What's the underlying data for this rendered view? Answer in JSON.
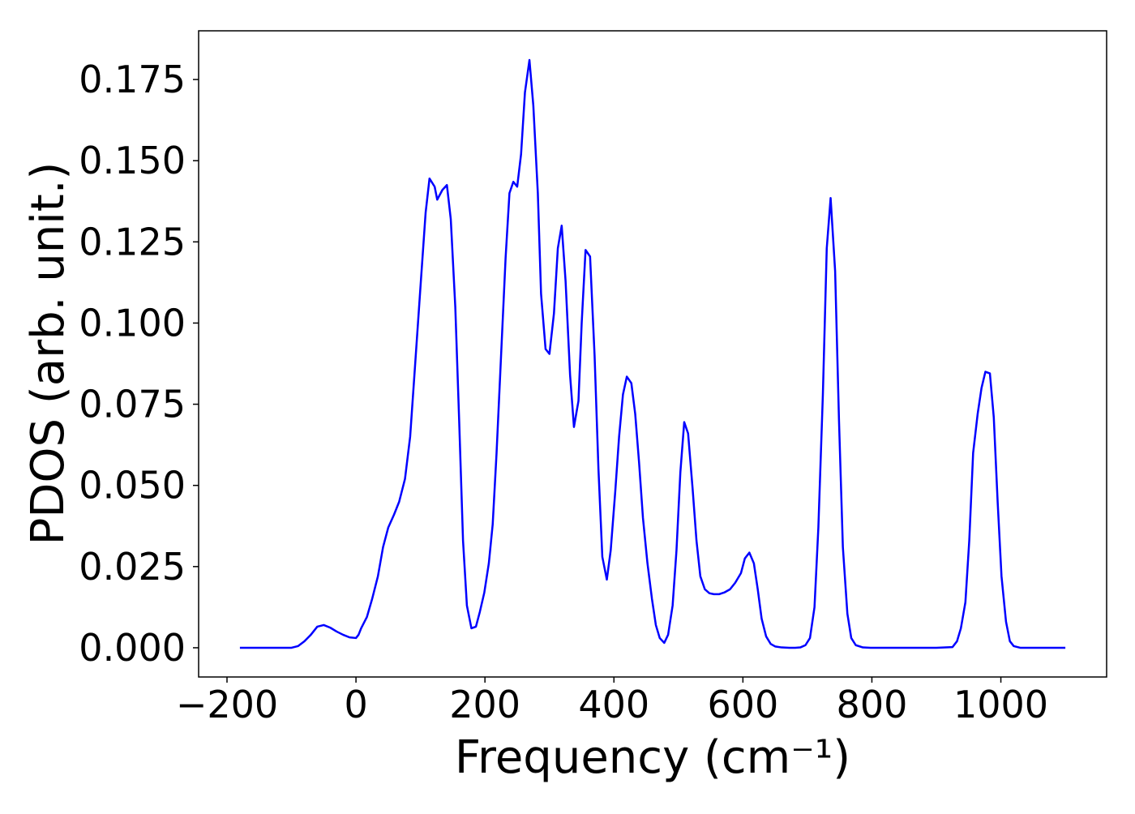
{
  "chart_data": {
    "type": "line",
    "xlabel": "Frequency (cm⁻¹)",
    "ylabel": "PDOS (arb. unit.)",
    "xlim": [
      -244,
      1164
    ],
    "ylim": [
      -0.009,
      0.19
    ],
    "xticks": [
      {
        "value": -200,
        "label": "−200"
      },
      0,
      200,
      400,
      600,
      800,
      1000
    ],
    "yticks": [
      {
        "value": 0,
        "label": "0.000"
      },
      {
        "value": 0.025,
        "label": "0.025"
      },
      {
        "value": 0.05,
        "label": "0.050"
      },
      {
        "value": 0.075,
        "label": "0.075"
      },
      {
        "value": 0.1,
        "label": "0.100"
      },
      {
        "value": 0.125,
        "label": "0.125"
      },
      {
        "value": 0.15,
        "label": "0.150"
      },
      {
        "value": 0.175,
        "label": "0.175"
      }
    ],
    "series": [
      {
        "color": "#0000ff",
        "x": [
          -180,
          -100,
          -90,
          -80,
          -70,
          -60,
          -50,
          -40,
          -30,
          -20,
          -10,
          0,
          4,
          8,
          17,
          25,
          34,
          42,
          50,
          59,
          67,
          76,
          84,
          92,
          101,
          108,
          114,
          122,
          126,
          134,
          141,
          147,
          154,
          160,
          166,
          172,
          179,
          186,
          192,
          199,
          206,
          212,
          218,
          225,
          232,
          238,
          244,
          250,
          256,
          262,
          269,
          275,
          282,
          287,
          294,
          300,
          307,
          313,
          319,
          325,
          332,
          338,
          345,
          350,
          356,
          363,
          370,
          376,
          382,
          389,
          395,
          402,
          408,
          414,
          420,
          427,
          433,
          439,
          445,
          452,
          459,
          465,
          471,
          478,
          484,
          491,
          497,
          503,
          509,
          515,
          522,
          528,
          534,
          541,
          548,
          555,
          563,
          571,
          580,
          588,
          597,
          603,
          610,
          617,
          623,
          629,
          636,
          643,
          650,
          660,
          672,
          681,
          689,
          697,
          704,
          711,
          717,
          724,
          730,
          736,
          743,
          749,
          755,
          762,
          768,
          775,
          786,
          798,
          900,
          925,
          932,
          938,
          945,
          951,
          957,
          964,
          970,
          976,
          983,
          989,
          995,
          1001,
          1008,
          1014,
          1020,
          1030,
          1100
        ],
        "values": [
          0,
          0,
          0.0005,
          0.002,
          0.004,
          0.0065,
          0.007,
          0.0062,
          0.005,
          0.004,
          0.0032,
          0.003,
          0.004,
          0.006,
          0.0095,
          0.015,
          0.022,
          0.031,
          0.037,
          0.041,
          0.045,
          0.052,
          0.065,
          0.088,
          0.114,
          0.134,
          0.1445,
          0.142,
          0.138,
          0.141,
          0.1425,
          0.132,
          0.105,
          0.07,
          0.033,
          0.013,
          0.006,
          0.0065,
          0.011,
          0.017,
          0.026,
          0.038,
          0.06,
          0.09,
          0.12,
          0.14,
          0.1435,
          0.142,
          0.152,
          0.171,
          0.181,
          0.167,
          0.14,
          0.109,
          0.092,
          0.0905,
          0.103,
          0.123,
          0.13,
          0.113,
          0.084,
          0.068,
          0.076,
          0.1,
          0.1225,
          0.1205,
          0.09,
          0.055,
          0.028,
          0.021,
          0.03,
          0.048,
          0.065,
          0.078,
          0.0835,
          0.0815,
          0.072,
          0.057,
          0.04,
          0.026,
          0.015,
          0.007,
          0.003,
          0.0015,
          0.004,
          0.013,
          0.03,
          0.054,
          0.0695,
          0.066,
          0.049,
          0.033,
          0.022,
          0.018,
          0.0168,
          0.0165,
          0.0165,
          0.017,
          0.018,
          0.02,
          0.023,
          0.0275,
          0.0293,
          0.026,
          0.018,
          0.009,
          0.0035,
          0.0012,
          0.0004,
          0.0001,
          0,
          0,
          0.0001,
          0.0008,
          0.003,
          0.0125,
          0.037,
          0.078,
          0.123,
          0.1385,
          0.116,
          0.07,
          0.031,
          0.0105,
          0.003,
          0.0008,
          0.0001,
          0,
          0,
          0.0002,
          0.002,
          0.006,
          0.014,
          0.033,
          0.06,
          0.072,
          0.08,
          0.085,
          0.0845,
          0.071,
          0.045,
          0.022,
          0.008,
          0.002,
          0.0005,
          0,
          0
        ]
      }
    ]
  }
}
